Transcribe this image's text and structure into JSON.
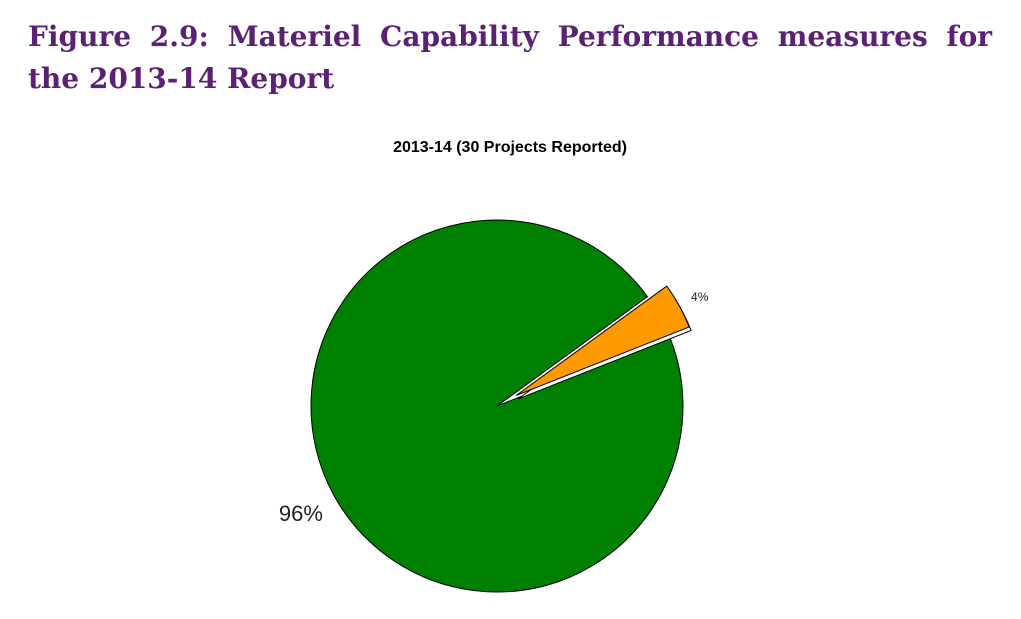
{
  "figure": {
    "caption": "Figure 2.9: Materiel Capability Performance measures for the 2013-14 Report",
    "caption_color": "#5b2173"
  },
  "chart_data": {
    "type": "pie",
    "title": "2013-14 (30 Projects Reported)",
    "slices": [
      {
        "label": "96%",
        "value": 96,
        "color": "#008000",
        "exploded": false
      },
      {
        "label": "4%",
        "value": 4,
        "color": "#ff9900",
        "exploded": true
      }
    ],
    "start_angle_deg": 36,
    "direction": "counterclockwise"
  }
}
